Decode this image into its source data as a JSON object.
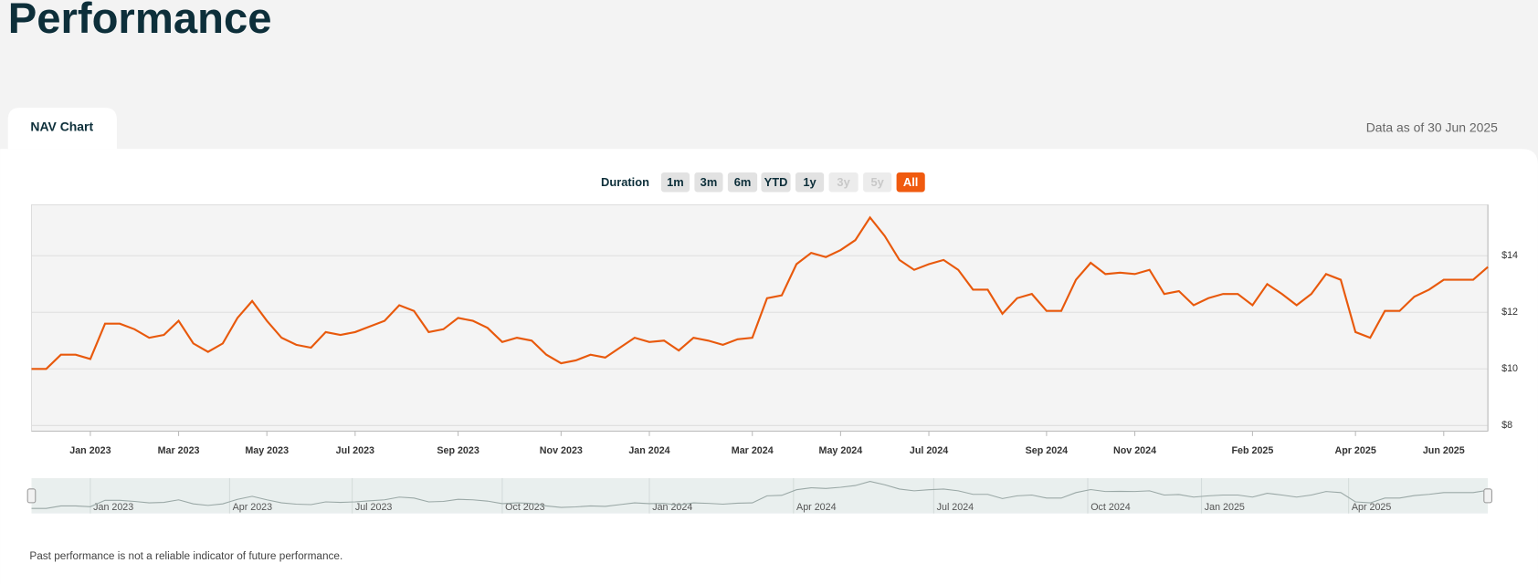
{
  "page": {
    "title": "Performance",
    "tab": "NAV Chart",
    "data_as_of": "Data as of 30 Jun 2025",
    "duration_label": "Duration",
    "buttons": [
      {
        "label": "1m",
        "state": "normal"
      },
      {
        "label": "3m",
        "state": "normal"
      },
      {
        "label": "6m",
        "state": "normal"
      },
      {
        "label": "YTD",
        "state": "normal"
      },
      {
        "label": "1y",
        "state": "normal"
      },
      {
        "label": "3y",
        "state": "disabled"
      },
      {
        "label": "5y",
        "state": "disabled"
      },
      {
        "label": "All",
        "state": "active"
      }
    ],
    "disclaimer": "Past performance is not a reliable indicator of future performance."
  },
  "chart_data": {
    "type": "line",
    "color": "#e8590c",
    "grid": true,
    "categories": [
      null,
      null,
      null,
      null,
      "Jan 2023",
      null,
      null,
      null,
      null,
      null,
      "Mar 2023",
      null,
      null,
      null,
      null,
      null,
      "May 2023",
      null,
      null,
      null,
      null,
      null,
      "Jul 2023",
      null,
      null,
      null,
      null,
      null,
      null,
      "Sep 2023",
      null,
      null,
      null,
      null,
      null,
      null,
      "Nov 2023",
      null,
      null,
      null,
      null,
      null,
      "Jan 2024",
      null,
      null,
      null,
      null,
      null,
      null,
      "Mar 2024",
      null,
      null,
      null,
      null,
      null,
      "May 2024",
      null,
      null,
      null,
      null,
      null,
      "Jul 2024",
      null,
      null,
      null,
      null,
      null,
      null,
      null,
      "Sep 2024",
      null,
      null,
      null,
      null,
      null,
      "Nov 2024",
      null,
      null,
      null,
      null,
      null,
      null,
      null,
      "Feb 2025",
      null,
      null,
      null,
      null,
      null,
      null,
      "Apr 2025",
      null,
      null,
      null,
      null,
      null,
      "Jun 2025",
      null,
      null,
      null
    ],
    "values": [
      10.0,
      10.0,
      10.5,
      10.5,
      10.35,
      11.6,
      11.6,
      11.4,
      11.1,
      11.2,
      11.7,
      10.9,
      10.6,
      10.9,
      11.8,
      12.4,
      11.7,
      11.1,
      10.85,
      10.75,
      11.3,
      11.2,
      11.3,
      11.5,
      11.7,
      12.25,
      12.05,
      11.3,
      11.4,
      11.8,
      11.7,
      11.45,
      10.95,
      11.1,
      11.0,
      10.5,
      10.2,
      10.3,
      10.5,
      10.4,
      10.75,
      11.1,
      10.95,
      11.0,
      10.65,
      11.1,
      11.0,
      10.85,
      11.05,
      11.1,
      12.5,
      12.6,
      13.7,
      14.1,
      13.95,
      14.2,
      14.55,
      15.35,
      14.7,
      13.85,
      13.5,
      13.7,
      13.85,
      13.5,
      12.8,
      12.8,
      11.95,
      12.5,
      12.65,
      12.05,
      12.05,
      13.15,
      13.75,
      13.35,
      13.4,
      13.35,
      13.5,
      12.65,
      12.75,
      12.25,
      12.5,
      12.65,
      12.65,
      12.25,
      13.0,
      12.65,
      12.25,
      12.65,
      13.35,
      13.15,
      11.3,
      11.1,
      12.05,
      12.05,
      12.55,
      12.8,
      13.15,
      13.15,
      13.15,
      13.6
    ],
    "ylim": [
      7.8,
      15.8
    ],
    "yticks": [
      {
        "value": 8,
        "label": "$8"
      },
      {
        "value": 10,
        "label": "$10"
      },
      {
        "value": 12,
        "label": "$12"
      },
      {
        "value": 14,
        "label": "$14"
      }
    ]
  },
  "navigator": {
    "labels": [
      "Jan 2023",
      "Apr 2023",
      "Jul 2023",
      "Oct 2023",
      "Jan 2024",
      "Apr 2024",
      "Jul 2024",
      "Oct 2024",
      "Jan 2025",
      "Apr 2025"
    ]
  }
}
